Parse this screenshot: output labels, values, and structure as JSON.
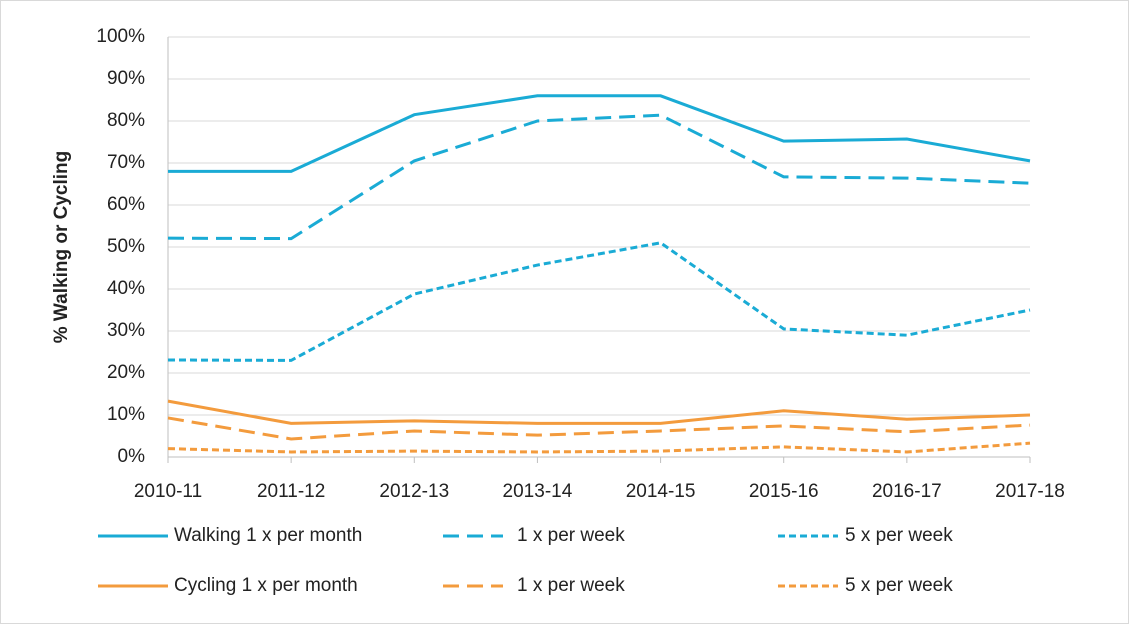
{
  "chart_data": {
    "type": "line",
    "y_label": "% Walking or Cycling",
    "categories": [
      "2010-11",
      "2011-12",
      "2012-13",
      "2013-14",
      "2014-15",
      "2015-16",
      "2016-17",
      "2017-18"
    ],
    "series": [
      {
        "name": "Walking 1 x per month",
        "color": "#1aabd5",
        "dash": "solid",
        "values": [
          68,
          68,
          81.5,
          86,
          86,
          75.2,
          75.7,
          70.5
        ]
      },
      {
        "name": "1 x per week",
        "color": "#1aabd5",
        "dash": "dashed",
        "values": [
          52.1,
          52,
          70.5,
          80,
          81.4,
          66.7,
          66.4,
          65.2
        ]
      },
      {
        "name": "5 x per week",
        "color": "#1aabd5",
        "dash": "dotted",
        "values": [
          23.1,
          23,
          38.8,
          45.7,
          51,
          30.5,
          29,
          35
        ]
      },
      {
        "name": "Cycling 1 x per month",
        "color": "#f39b3d",
        "dash": "solid",
        "values": [
          13.3,
          8,
          8.6,
          8,
          8,
          11,
          9,
          10
        ]
      },
      {
        "name": "1 x per week",
        "color": "#f39b3d",
        "dash": "dashed",
        "values": [
          9.3,
          4.3,
          6.2,
          5.2,
          6.2,
          7.4,
          6,
          7.6
        ]
      },
      {
        "name": "5 x per week",
        "color": "#f39b3d",
        "dash": "dotted",
        "values": [
          2,
          1.2,
          1.4,
          1.2,
          1.4,
          2.4,
          1.2,
          3.3
        ]
      }
    ],
    "ylim": [
      0,
      100
    ],
    "yticks": [
      {
        "value": 0,
        "label": "0%"
      },
      {
        "value": 10,
        "label": "10%"
      },
      {
        "value": 20,
        "label": "20%"
      },
      {
        "value": 30,
        "label": "30%"
      },
      {
        "value": 40,
        "label": "40%"
      },
      {
        "value": 50,
        "label": "50%"
      },
      {
        "value": 60,
        "label": "60%"
      },
      {
        "value": 70,
        "label": "70%"
      },
      {
        "value": 80,
        "label": "80%"
      },
      {
        "value": 90,
        "label": "90%"
      },
      {
        "value": 100,
        "label": "100%"
      }
    ],
    "grid": true,
    "legend": "bottom"
  }
}
